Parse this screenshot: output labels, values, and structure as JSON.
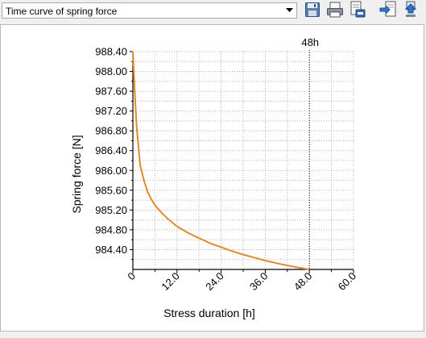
{
  "toolbar": {
    "selector_value": "Time curve of spring force",
    "icons": [
      "save-icon",
      "print-icon",
      "print-preview-icon",
      "export-icon",
      "import-icon"
    ]
  },
  "chart_data": {
    "type": "line",
    "xlabel": "Stress duration [h]",
    "ylabel": "Spring force [N]",
    "xlim": [
      0,
      60
    ],
    "ylim": [
      984.0,
      988.4
    ],
    "x_ticks": [
      "0",
      "12.0",
      "24.0",
      "36.0",
      "48.0",
      "60.0"
    ],
    "y_ticks": [
      "988.40",
      "988.00",
      "987.60",
      "987.20",
      "986.80",
      "986.40",
      "986.00",
      "985.60",
      "985.20",
      "984.80",
      "984.40"
    ],
    "grid": true,
    "line_color": "#e08a2c",
    "marker": {
      "x": 48,
      "label": "48h"
    },
    "series": [
      {
        "x": [
          0,
          0.5,
          1,
          2,
          3,
          4,
          5,
          6,
          8,
          10,
          12,
          15,
          18,
          21,
          24,
          27,
          30,
          33,
          36,
          40,
          44,
          48
        ],
        "values": [
          988.4,
          987.6,
          986.9,
          986.1,
          985.8,
          985.57,
          985.42,
          985.3,
          985.13,
          984.99,
          984.87,
          984.74,
          984.63,
          984.53,
          984.45,
          984.37,
          984.3,
          984.24,
          984.18,
          984.11,
          984.05,
          984.0
        ]
      }
    ]
  }
}
